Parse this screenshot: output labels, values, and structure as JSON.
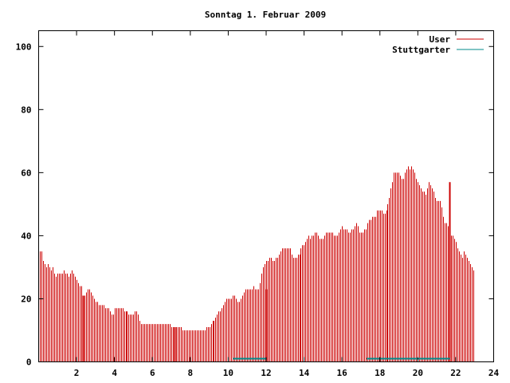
{
  "chart_data": {
    "type": "bar",
    "title": "Sonntag 1. Februar 2009",
    "xlabel": "",
    "ylabel": "",
    "xlim": [
      0,
      24
    ],
    "ylim": [
      0,
      105
    ],
    "x_ticks": [
      2,
      4,
      6,
      8,
      10,
      12,
      14,
      16,
      18,
      20,
      22,
      24
    ],
    "y_ticks": [
      0,
      20,
      40,
      60,
      80,
      100
    ],
    "grid": false,
    "legend_position": "top-right",
    "series": [
      {
        "name": "User",
        "color": "#cc0000",
        "style": "impulses",
        "x_start": 0.0833,
        "x_step": 0.0833,
        "values": [
          35,
          35,
          32,
          31,
          30,
          31,
          30,
          29,
          30,
          28,
          27,
          28,
          28,
          28,
          28,
          29,
          28,
          28,
          27,
          28,
          29,
          28,
          27,
          26,
          25,
          24,
          24,
          21,
          21,
          22,
          23,
          23,
          22,
          21,
          20,
          19,
          19,
          18,
          18,
          18,
          18,
          17,
          17,
          17,
          16,
          15,
          15,
          17,
          17,
          17,
          17,
          17,
          17,
          16,
          16,
          16,
          15,
          15,
          15,
          15,
          16,
          16,
          15,
          13,
          12,
          12,
          12,
          12,
          12,
          12,
          12,
          12,
          12,
          12,
          12,
          12,
          12,
          12,
          12,
          12,
          12,
          12,
          12,
          11,
          11,
          11,
          11,
          11,
          11,
          11,
          10,
          10,
          10,
          10,
          10,
          10,
          10,
          10,
          10,
          10,
          10,
          10,
          10,
          10,
          10,
          11,
          11,
          11,
          12,
          13,
          13,
          14,
          15,
          16,
          16,
          17,
          18,
          19,
          20,
          20,
          20,
          20,
          21,
          21,
          20,
          19,
          19,
          20,
          21,
          22,
          23,
          23,
          23,
          23,
          23,
          24,
          23,
          23,
          23,
          25,
          28,
          30,
          31,
          32,
          32,
          33,
          33,
          32,
          32,
          33,
          33,
          34,
          35,
          36,
          36,
          36,
          36,
          36,
          36,
          34,
          33,
          33,
          33,
          34,
          34,
          36,
          37,
          37,
          38,
          39,
          40,
          39,
          40,
          40,
          41,
          41,
          40,
          39,
          39,
          39,
          40,
          41,
          41,
          41,
          41,
          41,
          40,
          40,
          40,
          41,
          42,
          43,
          42,
          42,
          42,
          41,
          41,
          42,
          42,
          43,
          44,
          43,
          41,
          41,
          41,
          42,
          42,
          44,
          45,
          45,
          46,
          46,
          46,
          48,
          48,
          48,
          48,
          47,
          47,
          48,
          50,
          52,
          55,
          57,
          60,
          60,
          60,
          60,
          59,
          58,
          58,
          60,
          61,
          62,
          61,
          62,
          61,
          60,
          58,
          57,
          56,
          55,
          54,
          54,
          53,
          55,
          57,
          56,
          55,
          54,
          52,
          51,
          51,
          51,
          49,
          46,
          44,
          44,
          43,
          42,
          40,
          40,
          39,
          38,
          36,
          35,
          34,
          33,
          35,
          34,
          33,
          32,
          31,
          30,
          29
        ],
        "spikes": [
          {
            "x": 2.33,
            "value": 21
          },
          {
            "x": 7.17,
            "value": 11
          },
          {
            "x": 12.0,
            "value": 23
          },
          {
            "x": 21.67,
            "value": 57
          }
        ]
      },
      {
        "name": "Stuttgarter",
        "color": "#008b8b",
        "style": "impulses",
        "segments": [
          {
            "x_from": 10.25,
            "x_to": 12.0,
            "value": 1
          },
          {
            "x_from": 17.3,
            "x_to": 21.7,
            "value": 1
          }
        ]
      }
    ]
  }
}
